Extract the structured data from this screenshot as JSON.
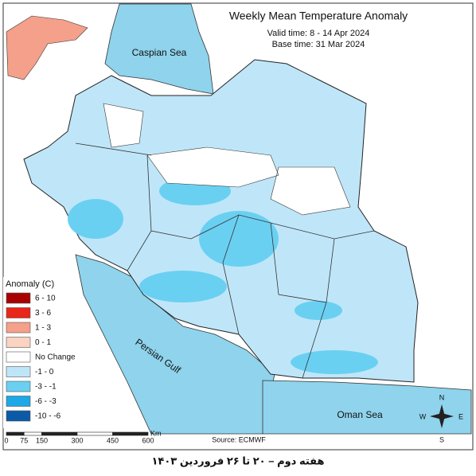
{
  "title": "Weekly Mean Temperature Anomaly",
  "valid_time": "Valid time: 8 - 14 Apr 2024",
  "base_time": "Base time: 31 Mar 2024",
  "legend": {
    "title": "Anomaly (C)",
    "items": [
      {
        "label": "6 - 10",
        "color": "#a80000"
      },
      {
        "label": "3 - 6",
        "color": "#e8261a"
      },
      {
        "label": "1 - 3",
        "color": "#f4a08a"
      },
      {
        "label": "0 - 1",
        "color": "#fbd3c1"
      },
      {
        "label": "No Change",
        "color": "#ffffff"
      },
      {
        "label": "-1 - 0",
        "color": "#bfe6f8"
      },
      {
        "label": "-3 - -1",
        "color": "#6ad0f2"
      },
      {
        "label": "-6 - -3",
        "color": "#1ea8e6"
      },
      {
        "label": "-10 - -6",
        "color": "#0a5aa8"
      }
    ]
  },
  "labels": {
    "caspian": "Caspian Sea",
    "persian_gulf": "Persian Gulf",
    "oman_sea": "Oman Sea"
  },
  "compass": {
    "n": "N",
    "e": "E",
    "s": "S",
    "w": "W"
  },
  "scale_bar": {
    "ticks": [
      0,
      75,
      150,
      300,
      450,
      600
    ],
    "unit": "Km"
  },
  "source": "Source: ECMWF",
  "caption": "هفته دوم – ۲۰ تا ۲۶ فروردین ۱۴۰۳"
}
